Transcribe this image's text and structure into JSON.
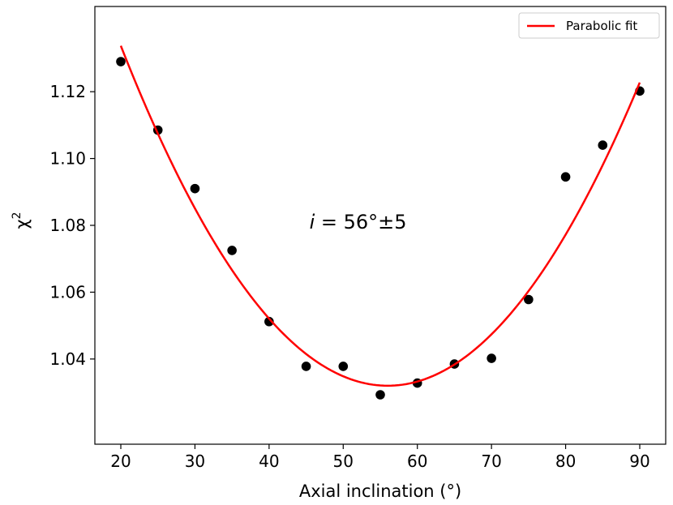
{
  "chart_data": {
    "type": "scatter",
    "xlabel": "Axial inclination (°)",
    "ylabel": "χ",
    "ylabel_superscript": "2",
    "xlim": [
      16.5,
      93.5
    ],
    "ylim": [
      1.0145,
      1.1455
    ],
    "xticks": [
      20,
      30,
      40,
      50,
      60,
      70,
      80,
      90
    ],
    "xtick_labels": [
      "20",
      "30",
      "40",
      "50",
      "60",
      "70",
      "80",
      "90"
    ],
    "yticks": [
      1.04,
      1.06,
      1.08,
      1.1,
      1.12
    ],
    "ytick_labels": [
      "1.04",
      "1.06",
      "1.08",
      "1.10",
      "1.12"
    ],
    "grid": false,
    "legend_placement": "top-right",
    "series": [
      {
        "kind": "points",
        "color": "#000000",
        "x": [
          20,
          25,
          30,
          35,
          40,
          45,
          50,
          55,
          60,
          65,
          70,
          75,
          80,
          85,
          90
        ],
        "y": [
          1.129,
          1.1085,
          1.091,
          1.0725,
          1.0512,
          1.0378,
          1.0378,
          1.0293,
          1.0328,
          1.0385,
          1.0402,
          1.0578,
          1.0945,
          1.104,
          1.1202
        ]
      },
      {
        "kind": "fit",
        "name": "Parabolic fit",
        "color": "#ff0000",
        "vertex_x": 56,
        "vertex_y": 1.032,
        "coef_a": 7.85e-05,
        "x_range": [
          20,
          90
        ]
      }
    ],
    "annotation": {
      "italic": "i",
      "rest": " = 56°±5",
      "x": 52,
      "y": 1.081
    }
  }
}
